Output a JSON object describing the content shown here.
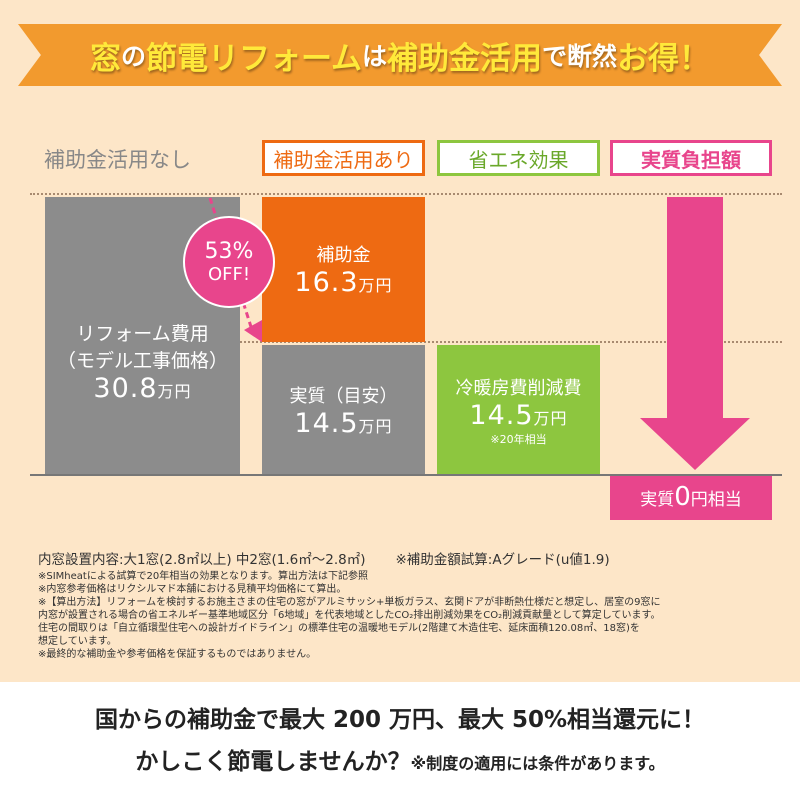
{
  "banner": {
    "p1": "窓",
    "p2": "の",
    "p3": "節電リフォーム",
    "p4": "は",
    "p5": "補助金活用",
    "p6": "で断然",
    "p7": "お得！"
  },
  "labels": {
    "none": "補助金活用なし",
    "with": "補助金活用あり",
    "eco": "省エネ効果",
    "actual": "実質負担額"
  },
  "badge": {
    "pct": "53%",
    "off": "OFF!"
  },
  "colors": {
    "orange": "#ee6a12",
    "gray": "#8c8c8c",
    "green": "#8dc63f",
    "pink": "#e8458c",
    "bg": "#fde6c8"
  },
  "chart_data": {
    "type": "bar",
    "unit": "万円",
    "categories": [
      "補助金活用なし",
      "補助金活用あり",
      "省エネ効果",
      "実質負担額"
    ],
    "series": [
      {
        "name": "リフォーム費用（モデル工事価格）",
        "values": [
          30.8,
          0,
          0,
          0
        ]
      },
      {
        "name": "補助金",
        "values": [
          0,
          16.3,
          0,
          0
        ]
      },
      {
        "name": "実質（目安）",
        "values": [
          0,
          14.5,
          0,
          0
        ]
      },
      {
        "name": "冷暖房費削減費",
        "values": [
          0,
          0,
          14.5,
          0
        ]
      },
      {
        "name": "実質相当",
        "values": [
          0,
          0,
          0,
          0
        ]
      }
    ],
    "bars": {
      "reform": {
        "l1": "リフォーム費用",
        "l2": "（モデル工事価格）",
        "v": "30.8",
        "u": "万円"
      },
      "subsidy": {
        "l1": "補助金",
        "v": "16.3",
        "u": "万円"
      },
      "actual": {
        "l1": "実質（目安）",
        "v": "14.5",
        "u": "万円"
      },
      "saving": {
        "l1": "冷暖房費削減費",
        "v": "14.5",
        "u": "万円",
        "note": "※20年相当"
      },
      "zero": {
        "a": "実質",
        "v": "0",
        "b": "円相当"
      }
    }
  },
  "notes": {
    "main1": "内窓設置内容:大1窓(2.8㎡以上) 中2窓(1.6㎡～2.8㎡)",
    "main2": "※補助金額試算:Aグレード(u値1.9)",
    "lines": [
      "※SIMheatによる試算で20年相当の効果となります。算出方法は下記参照",
      "※内窓参考価格はリクシルマド本舗における見積平均価格にて算出。",
      "※【算出方法】リフォームを検討するお施主さまの住宅の窓がアルミサッシ+単板ガラス、玄関ドアが非断熱仕様だと想定し、居室の9窓に",
      "内窓が設置される場合の省エネルギー基準地域区分「6地域」を代表地域としたCO₂排出削減効果をCO₂削減貢献量として算定しています。",
      "住宅の間取りは「自立循環型住宅への設計ガイドライン」の標準住宅の温暖地モデル(2階建て木造住宅、延床面積120.08㎡、18窓)を",
      "想定しています。",
      "※最終的な補助金や参考価格を保証するものではありません。"
    ]
  },
  "footer": {
    "line1": "国からの補助金で最大 200 万円、最大 50%相当還元に！",
    "line2": "かしこく節電しませんか？",
    "line2_note": "※制度の適用には条件があります。"
  }
}
